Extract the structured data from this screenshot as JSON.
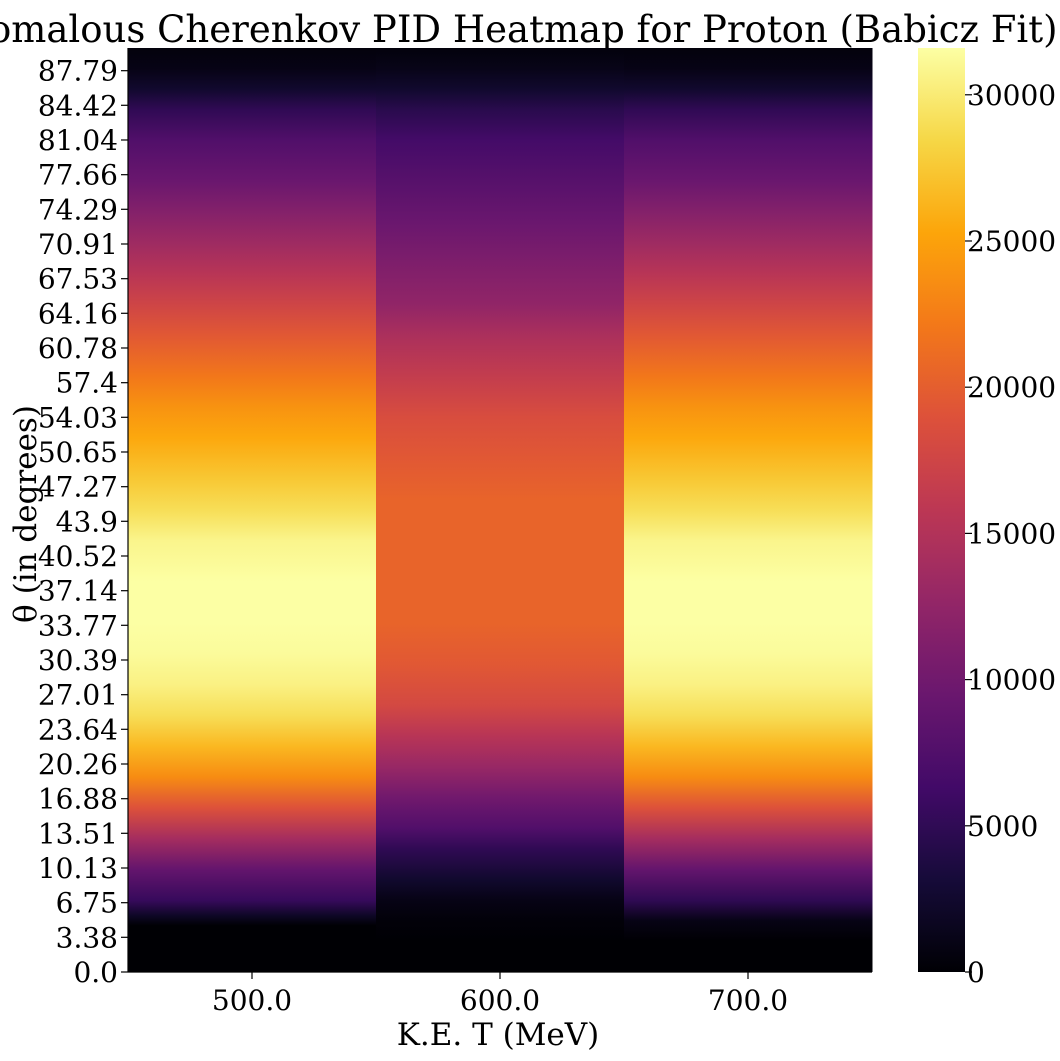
{
  "chart_data": {
    "type": "heatmap",
    "title": "Anomalous Cherenkov PID Heatmap for Proton (Babicz Fit)",
    "xlabel": "K.E. T (MeV)",
    "ylabel": "θ (in degrees)",
    "x_categories": [
      "500.0",
      "600.0",
      "700.0"
    ],
    "y_tick_labels": [
      "0.0",
      "3.38",
      "6.75",
      "10.13",
      "13.51",
      "16.88",
      "20.26",
      "23.64",
      "27.01",
      "30.39",
      "33.77",
      "37.14",
      "40.52",
      "43.9",
      "47.27",
      "50.65",
      "54.03",
      "57.4",
      "60.78",
      "64.16",
      "67.53",
      "70.91",
      "74.29",
      "77.66",
      "81.04",
      "84.42",
      "87.79"
    ],
    "y_range": [
      0,
      90
    ],
    "colormap": "inferno",
    "colorbar": {
      "min": 0,
      "max": 31600,
      "ticks": [
        0,
        5000,
        10000,
        15000,
        20000,
        25000,
        30000
      ],
      "tick_labels": [
        "0",
        "5000",
        "10000",
        "15000",
        "20000",
        "25000",
        "30000"
      ]
    },
    "columns": [
      {
        "x": "500.0",
        "profile": [
          [
            0,
            0
          ],
          [
            4.5,
            0
          ],
          [
            5.5,
            2000
          ],
          [
            7,
            5500
          ],
          [
            10,
            9000
          ],
          [
            13,
            14000
          ],
          [
            16,
            19000
          ],
          [
            19,
            23500
          ],
          [
            22,
            26500
          ],
          [
            25,
            29000
          ],
          [
            28,
            30500
          ],
          [
            31,
            31300
          ],
          [
            34,
            31600
          ],
          [
            38,
            31600
          ],
          [
            42,
            30800
          ],
          [
            45,
            29000
          ],
          [
            48,
            27500
          ],
          [
            52,
            25500
          ],
          [
            55,
            24000
          ],
          [
            58,
            22000
          ],
          [
            62,
            19500
          ],
          [
            65,
            17500
          ],
          [
            68,
            15500
          ],
          [
            71,
            13500
          ],
          [
            74,
            11500
          ],
          [
            77,
            9500
          ],
          [
            81,
            7500
          ],
          [
            84,
            5000
          ],
          [
            86,
            2500
          ],
          [
            88,
            1000
          ],
          [
            90,
            500
          ]
        ]
      },
      {
        "x": "600.0",
        "profile": [
          [
            0,
            0
          ],
          [
            3,
            0
          ],
          [
            5,
            300
          ],
          [
            7,
            1000
          ],
          [
            9,
            2500
          ],
          [
            12,
            5000
          ],
          [
            14,
            7500
          ],
          [
            17,
            10000
          ],
          [
            20,
            13000
          ],
          [
            23,
            15500
          ],
          [
            26,
            18000
          ],
          [
            30,
            19500
          ],
          [
            34,
            20500
          ],
          [
            46,
            20500
          ],
          [
            50,
            19500
          ],
          [
            54,
            18500
          ],
          [
            58,
            16500
          ],
          [
            62,
            14500
          ],
          [
            65,
            12500
          ],
          [
            69,
            11000
          ],
          [
            73,
            9500
          ],
          [
            77,
            8000
          ],
          [
            81,
            6500
          ],
          [
            84,
            4500
          ],
          [
            86,
            2500
          ],
          [
            88,
            1200
          ],
          [
            90,
            500
          ]
        ]
      },
      {
        "x": "700.0",
        "profile": [
          [
            0,
            0
          ],
          [
            3,
            0
          ],
          [
            5,
            1000
          ],
          [
            7,
            5000
          ],
          [
            10,
            9000
          ],
          [
            13,
            14000
          ],
          [
            16,
            19000
          ],
          [
            19,
            23500
          ],
          [
            22,
            26500
          ],
          [
            25,
            29000
          ],
          [
            28,
            30500
          ],
          [
            31,
            31300
          ],
          [
            34,
            31600
          ],
          [
            38,
            31600
          ],
          [
            42,
            30800
          ],
          [
            45,
            29000
          ],
          [
            48,
            27500
          ],
          [
            52,
            25500
          ],
          [
            55,
            24000
          ],
          [
            58,
            22000
          ],
          [
            62,
            19500
          ],
          [
            65,
            17500
          ],
          [
            68,
            15500
          ],
          [
            71,
            13500
          ],
          [
            74,
            11500
          ],
          [
            77,
            9500
          ],
          [
            81,
            7500
          ],
          [
            84,
            5000
          ],
          [
            86,
            2500
          ],
          [
            88,
            1000
          ],
          [
            90,
            500
          ]
        ]
      }
    ]
  }
}
